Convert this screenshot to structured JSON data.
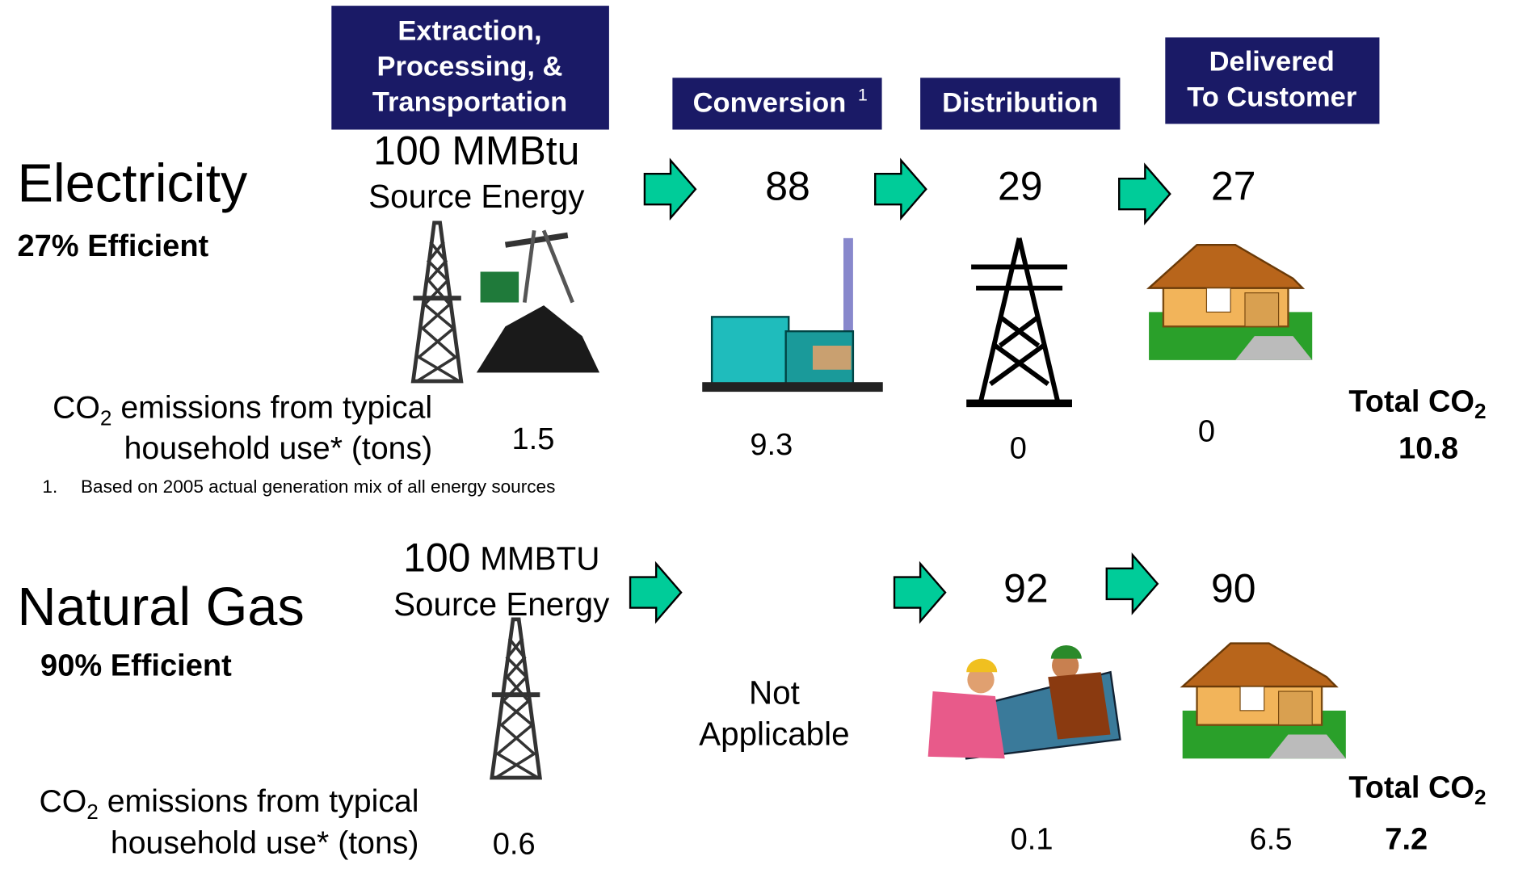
{
  "headers": [
    {
      "lines": [
        "Extraction,",
        "Processing, &",
        "Transportation"
      ]
    },
    {
      "text": "Conversion",
      "footnote_mark": "1"
    },
    {
      "text": "Distribution"
    },
    {
      "lines": [
        "Delivered",
        "To Customer"
      ]
    }
  ],
  "footnote": {
    "number": "1.",
    "text": "Based on 2005 actual generation mix of all energy sources"
  },
  "electricity": {
    "name": "Electricity",
    "efficiency": "27% Efficient",
    "source": [
      "100 MMBtu",
      "Source Energy"
    ],
    "stages": [
      88,
      29,
      27
    ],
    "emissions_label": {
      "co": "CO",
      "sub": "2",
      "rest": " emissions from typical",
      "line2": "household use* (tons)"
    },
    "emissions": [
      1.5,
      9.3,
      0,
      0
    ],
    "total_label": {
      "text": "Total CO",
      "sub": "2"
    },
    "total": 10.8
  },
  "natural_gas": {
    "name": "Natural Gas",
    "efficiency": "90% Efficient",
    "source": {
      "amount": "100",
      "unit": "MMBTU",
      "line2": "Source Energy"
    },
    "conversion": [
      "Not",
      "Applicable"
    ],
    "stages": [
      92,
      90
    ],
    "emissions_label": {
      "co": "CO",
      "sub": "2",
      "rest": " emissions from typical",
      "line2": "household use* (tons)"
    },
    "emissions": [
      0.6,
      0.1,
      6.5
    ],
    "total_label": {
      "text": "Total CO",
      "sub": "2"
    },
    "total": 7.2
  }
}
